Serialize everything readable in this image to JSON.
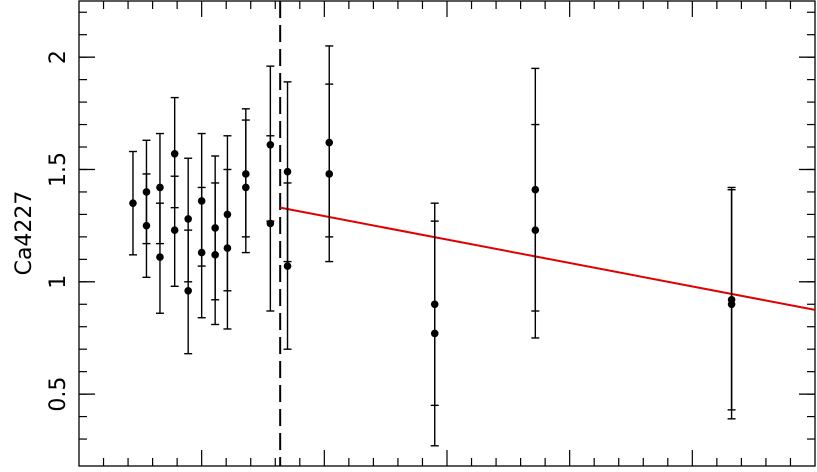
{
  "chart_data": {
    "type": "scatter",
    "ylabel": "Ca4227",
    "ylim": [
      0.18,
      2.25
    ],
    "xlim": [
      0,
      30
    ],
    "y_ticks": [
      "0.5",
      "1",
      "1.5",
      "2"
    ],
    "grid": false,
    "vline_x": 8.2,
    "colors": {
      "points": "#000000",
      "fit_line": "#e00000"
    },
    "series": [
      {
        "points": [
          {
            "x": 2.2,
            "y": 1.35,
            "low": 1.12,
            "high": 1.58
          },
          {
            "x": 2.75,
            "y": 1.4,
            "low": 1.17,
            "high": 1.63
          },
          {
            "x": 2.75,
            "y": 1.25,
            "low": 1.02,
            "high": 1.48
          },
          {
            "x": 3.3,
            "y": 1.42,
            "low": 1.17,
            "high": 1.66
          },
          {
            "x": 3.3,
            "y": 1.11,
            "low": 0.86,
            "high": 1.35
          },
          {
            "x": 3.9,
            "y": 1.57,
            "low": 1.33,
            "high": 1.82
          },
          {
            "x": 3.9,
            "y": 1.23,
            "low": 0.98,
            "high": 1.47
          },
          {
            "x": 4.45,
            "y": 1.28,
            "low": 1.0,
            "high": 1.55
          },
          {
            "x": 4.45,
            "y": 0.96,
            "low": 0.68,
            "high": 1.23
          },
          {
            "x": 5.0,
            "y": 1.36,
            "low": 1.07,
            "high": 1.66
          },
          {
            "x": 5.0,
            "y": 1.13,
            "low": 0.84,
            "high": 1.42
          },
          {
            "x": 5.55,
            "y": 1.24,
            "low": 0.92,
            "high": 1.56
          },
          {
            "x": 5.55,
            "y": 1.12,
            "low": 0.81,
            "high": 1.44
          },
          {
            "x": 6.05,
            "y": 1.3,
            "low": 0.96,
            "high": 1.65
          },
          {
            "x": 6.05,
            "y": 1.15,
            "low": 0.79,
            "high": 1.5
          },
          {
            "x": 6.8,
            "y": 1.48,
            "low": 1.2,
            "high": 1.77
          },
          {
            "x": 6.8,
            "y": 1.42,
            "low": 1.13,
            "high": 1.72
          },
          {
            "x": 7.8,
            "y": 1.61,
            "low": 1.27,
            "high": 1.96
          },
          {
            "x": 7.8,
            "y": 1.26,
            "low": 0.87,
            "high": 1.65
          },
          {
            "x": 8.5,
            "y": 1.49,
            "low": 1.09,
            "high": 1.89
          },
          {
            "x": 8.5,
            "y": 1.07,
            "low": 0.7,
            "high": 1.44
          },
          {
            "x": 10.2,
            "y": 1.62,
            "low": 1.2,
            "high": 2.05
          },
          {
            "x": 10.2,
            "y": 1.48,
            "low": 1.09,
            "high": 1.88
          },
          {
            "x": 14.5,
            "y": 0.9,
            "low": 0.45,
            "high": 1.35
          },
          {
            "x": 14.5,
            "y": 0.77,
            "low": 0.27,
            "high": 1.27
          },
          {
            "x": 18.6,
            "y": 1.41,
            "low": 0.87,
            "high": 1.95
          },
          {
            "x": 18.6,
            "y": 1.23,
            "low": 0.75,
            "high": 1.7
          },
          {
            "x": 26.6,
            "y": 0.92,
            "low": 0.43,
            "high": 1.42
          },
          {
            "x": 26.6,
            "y": 0.9,
            "low": 0.39,
            "high": 1.41
          }
        ]
      }
    ],
    "fit_line": {
      "x": [
        8.2,
        30
      ],
      "y": [
        1.33,
        0.875
      ]
    }
  }
}
